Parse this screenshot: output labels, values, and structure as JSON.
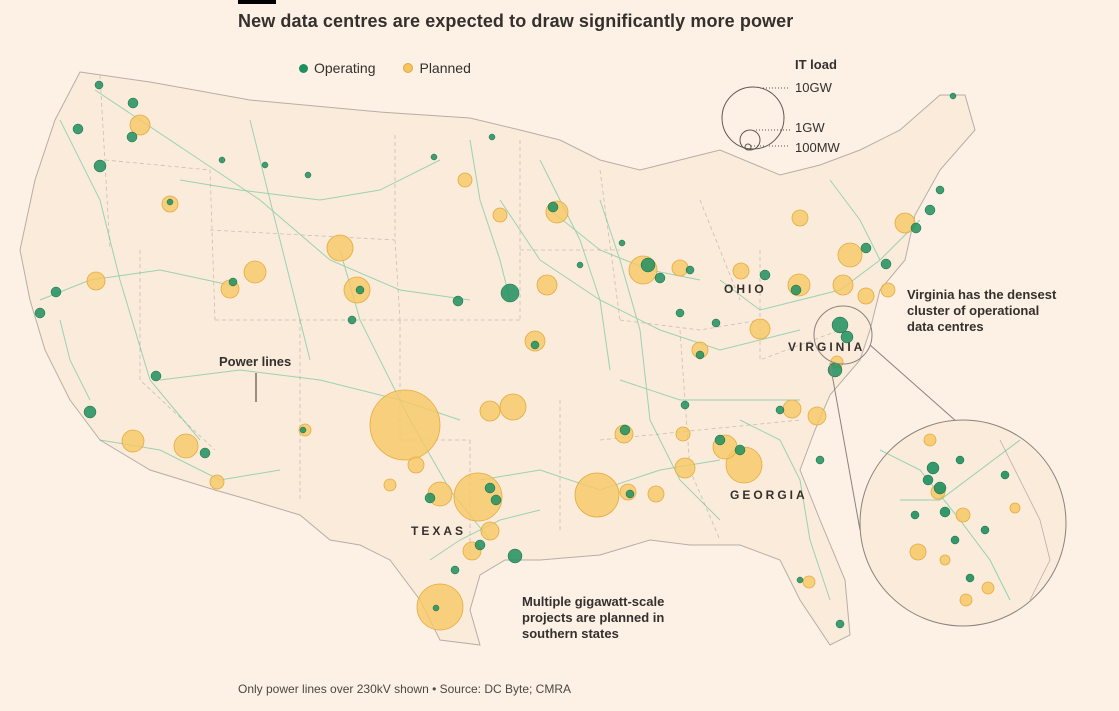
{
  "header": {
    "title": "New data centres are expected to draw significantly more power"
  },
  "legend": {
    "operating_label": "Operating",
    "planned_label": "Planned",
    "operating_color": "#1e8f5f",
    "planned_color": "#f5c460"
  },
  "size_legend": {
    "title": "IT load",
    "levels": [
      "10GW",
      "1GW",
      "100MW"
    ]
  },
  "regions": {
    "ohio": "OHIO",
    "virginia": "VIRGINIA",
    "georgia": "GEORGIA",
    "texas": "TEXAS"
  },
  "annotations": {
    "power_lines": "Power lines",
    "virginia_line1": "Virginia has the densest",
    "virginia_line2": "cluster of operational",
    "virginia_line3": "data centres",
    "south_line1": "Multiple gigawatt-scale",
    "south_line2": "projects are planned in",
    "south_line3": "southern states"
  },
  "footer": {
    "source": "Only power lines over 230kV shown • Source: DC Byte; CMRA"
  }
}
